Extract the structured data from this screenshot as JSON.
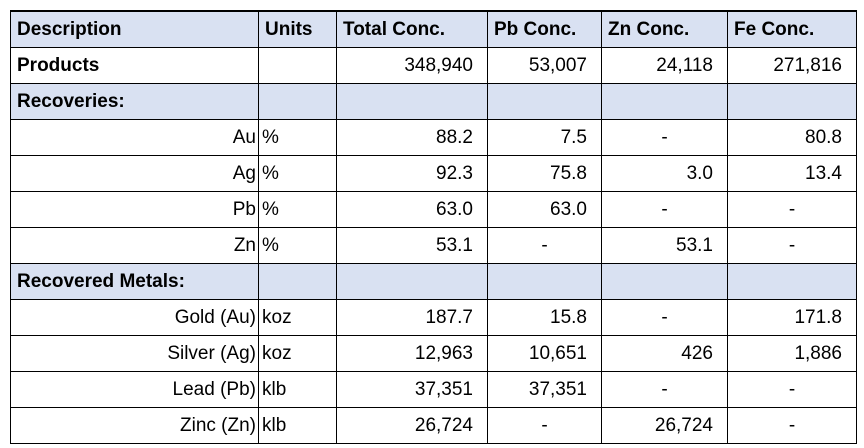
{
  "header": [
    "Description",
    "Units",
    "Total Conc.",
    "Pb Conc.",
    "Zn Conc.",
    "Fe Conc."
  ],
  "products": {
    "label": "Products",
    "units": "",
    "values": [
      "348,940",
      "53,007",
      "24,118",
      "271,816"
    ]
  },
  "recoveries": {
    "label": "Recoveries:",
    "rows": [
      {
        "label": "Au",
        "units": "%",
        "values": [
          "88.2",
          "7.5",
          "-",
          "80.8"
        ]
      },
      {
        "label": "Ag",
        "units": "%",
        "values": [
          "92.3",
          "75.8",
          "3.0",
          "13.4"
        ]
      },
      {
        "label": "Pb",
        "units": "%",
        "values": [
          "63.0",
          "63.0",
          "-",
          "-"
        ]
      },
      {
        "label": "Zn",
        "units": "%",
        "values": [
          "53.1",
          "-",
          "53.1",
          "-"
        ]
      }
    ]
  },
  "recovered_metals": {
    "label": "Recovered Metals:",
    "rows": [
      {
        "label": "Gold (Au)",
        "units": "koz",
        "values": [
          "187.7",
          "15.8",
          "-",
          "171.8"
        ]
      },
      {
        "label": "Silver (Ag)",
        "units": "koz",
        "values": [
          "12,963",
          "10,651",
          "426",
          "1,886"
        ]
      },
      {
        "label": "Lead (Pb)",
        "units": "klb",
        "values": [
          "37,351",
          "37,351",
          "-",
          "-"
        ]
      },
      {
        "label": "Zinc (Zn)",
        "units": "klb",
        "values": [
          "26,724",
          "-",
          "26,724",
          "-"
        ]
      }
    ]
  },
  "colors": {
    "header_fill": "#D9E1F2"
  }
}
